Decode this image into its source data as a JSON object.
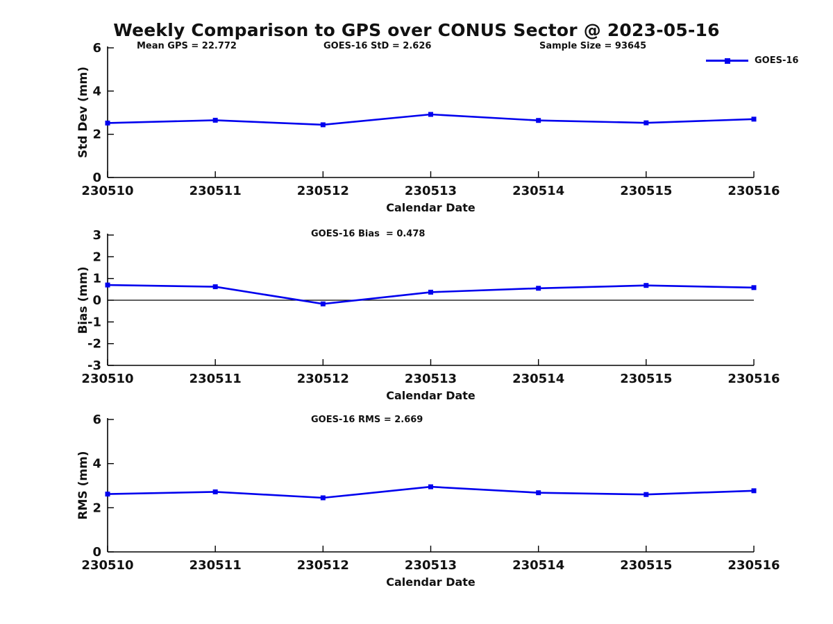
{
  "title": "Weekly Comparison to GPS over CONUS Sector @ 2023-05-16",
  "legend": {
    "label": "GOES-16",
    "color": "#0000EE",
    "marker": "square"
  },
  "line_color": "#0000EE",
  "axis_color": "#000000",
  "chart_data": [
    {
      "type": "line",
      "panel": "std-dev",
      "ylabel": "Std Dev (mm)",
      "xlabel": "Calendar Date",
      "categories": [
        "230510",
        "230511",
        "230512",
        "230513",
        "230514",
        "230515",
        "230516"
      ],
      "series": [
        {
          "name": "GOES-16",
          "values": [
            2.52,
            2.65,
            2.44,
            2.92,
            2.64,
            2.53,
            2.7
          ]
        }
      ],
      "ylim": [
        0,
        6
      ],
      "yticks": [
        0,
        2,
        4,
        6
      ],
      "grid": false,
      "zero_line": false,
      "legend_position": "top-right",
      "annotations": [
        {
          "text": "Mean GPS = 22.772"
        },
        {
          "text": "GOES-16 StD = 2.626"
        },
        {
          "text": "Sample Size = 93645"
        }
      ]
    },
    {
      "type": "line",
      "panel": "bias",
      "ylabel": "Bias (mm)",
      "xlabel": "Calendar Date",
      "categories": [
        "230510",
        "230511",
        "230512",
        "230513",
        "230514",
        "230515",
        "230516"
      ],
      "series": [
        {
          "name": "GOES-16",
          "values": [
            0.7,
            0.62,
            -0.17,
            0.37,
            0.55,
            0.68,
            0.58
          ]
        }
      ],
      "ylim": [
        -3,
        3
      ],
      "yticks": [
        -3,
        -2,
        -1,
        0,
        1,
        2,
        3
      ],
      "grid": false,
      "zero_line": true,
      "annotations": [
        {
          "text": "GOES-16 Bias  = 0.478"
        }
      ]
    },
    {
      "type": "line",
      "panel": "rms",
      "ylabel": "RMS (mm)",
      "xlabel": "Calendar Date",
      "categories": [
        "230510",
        "230511",
        "230512",
        "230513",
        "230514",
        "230515",
        "230516"
      ],
      "series": [
        {
          "name": "GOES-16",
          "values": [
            2.62,
            2.72,
            2.45,
            2.95,
            2.68,
            2.6,
            2.77
          ]
        }
      ],
      "ylim": [
        0,
        6
      ],
      "yticks": [
        0,
        2,
        4,
        6
      ],
      "grid": false,
      "zero_line": false,
      "annotations": [
        {
          "text": "GOES-16 RMS = 2.669"
        }
      ]
    }
  ]
}
